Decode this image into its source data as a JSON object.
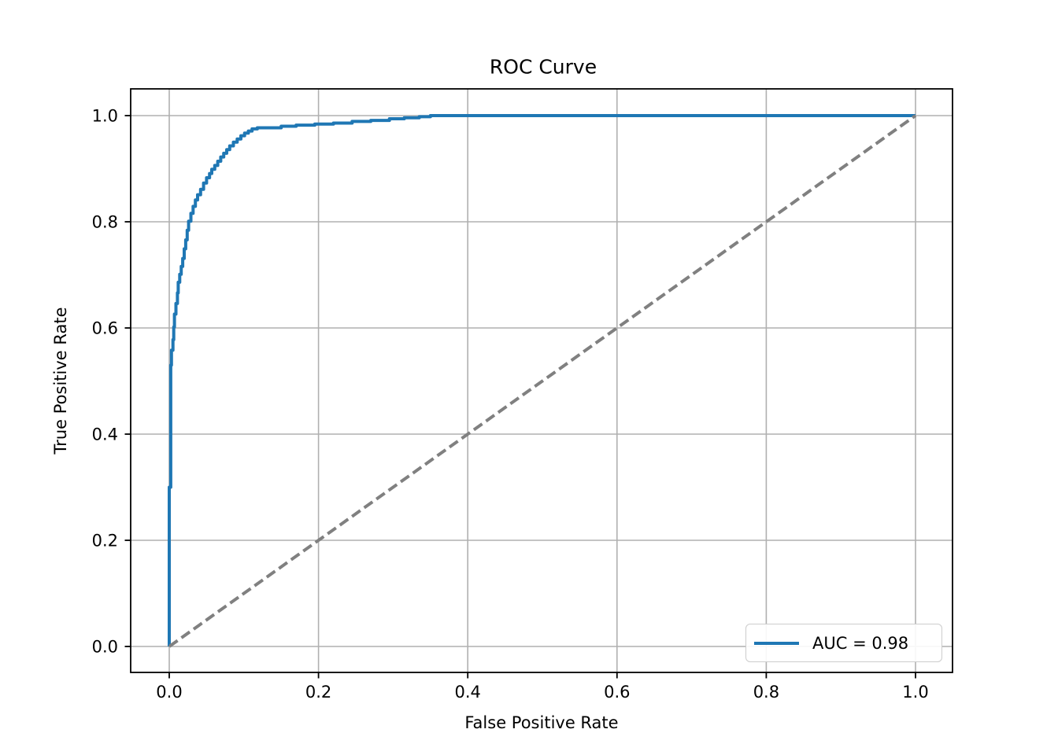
{
  "figure": {
    "background": "#ffffff"
  },
  "chart_data": {
    "type": "line",
    "title": "ROC Curve",
    "xlabel": "False Positive Rate",
    "ylabel": "True Positive Rate",
    "xlim": [
      0.0,
      1.0
    ],
    "ylim": [
      0.0,
      1.0
    ],
    "grid": true,
    "grid_color": "#b0b0b0",
    "x_ticks": [
      0.0,
      0.2,
      0.4,
      0.6,
      0.8,
      1.0
    ],
    "x_tick_labels": [
      "0.0",
      "0.2",
      "0.4",
      "0.6",
      "0.8",
      "1.0"
    ],
    "y_ticks": [
      0.0,
      0.2,
      0.4,
      0.6,
      0.8,
      1.0
    ],
    "y_tick_labels": [
      "0.0",
      "0.2",
      "0.4",
      "0.6",
      "0.8",
      "1.0"
    ],
    "legend": {
      "position": "lower right",
      "labels": [
        "AUC = 0.98"
      ]
    },
    "auc": 0.98,
    "series": [
      {
        "name": "AUC = 0.98",
        "color": "#1f77b4",
        "style": "solid",
        "in_legend": true,
        "points": [
          [
            0.0,
            0.0
          ],
          [
            0.0,
            0.3
          ],
          [
            0.002,
            0.3
          ],
          [
            0.002,
            0.53
          ],
          [
            0.003,
            0.53
          ],
          [
            0.003,
            0.558
          ],
          [
            0.005,
            0.558
          ],
          [
            0.005,
            0.578
          ],
          [
            0.006,
            0.578
          ],
          [
            0.006,
            0.602
          ],
          [
            0.007,
            0.602
          ],
          [
            0.007,
            0.626
          ],
          [
            0.009,
            0.626
          ],
          [
            0.009,
            0.646
          ],
          [
            0.011,
            0.646
          ],
          [
            0.011,
            0.666
          ],
          [
            0.012,
            0.666
          ],
          [
            0.012,
            0.686
          ],
          [
            0.014,
            0.686
          ],
          [
            0.014,
            0.701
          ],
          [
            0.016,
            0.701
          ],
          [
            0.016,
            0.716
          ],
          [
            0.018,
            0.716
          ],
          [
            0.018,
            0.731
          ],
          [
            0.02,
            0.731
          ],
          [
            0.02,
            0.749
          ],
          [
            0.022,
            0.749
          ],
          [
            0.022,
            0.766
          ],
          [
            0.024,
            0.766
          ],
          [
            0.024,
            0.784
          ],
          [
            0.026,
            0.784
          ],
          [
            0.026,
            0.801
          ],
          [
            0.029,
            0.801
          ],
          [
            0.029,
            0.816
          ],
          [
            0.032,
            0.816
          ],
          [
            0.032,
            0.829
          ],
          [
            0.035,
            0.829
          ],
          [
            0.035,
            0.841
          ],
          [
            0.038,
            0.841
          ],
          [
            0.038,
            0.851
          ],
          [
            0.042,
            0.851
          ],
          [
            0.042,
            0.861
          ],
          [
            0.046,
            0.861
          ],
          [
            0.046,
            0.873
          ],
          [
            0.05,
            0.873
          ],
          [
            0.05,
            0.883
          ],
          [
            0.054,
            0.883
          ],
          [
            0.054,
            0.891
          ],
          [
            0.057,
            0.891
          ],
          [
            0.057,
            0.899
          ],
          [
            0.061,
            0.899
          ],
          [
            0.061,
            0.906
          ],
          [
            0.065,
            0.906
          ],
          [
            0.065,
            0.914
          ],
          [
            0.069,
            0.914
          ],
          [
            0.069,
            0.922
          ],
          [
            0.073,
            0.922
          ],
          [
            0.073,
            0.929
          ],
          [
            0.077,
            0.929
          ],
          [
            0.077,
            0.936
          ],
          [
            0.081,
            0.936
          ],
          [
            0.081,
            0.943
          ],
          [
            0.086,
            0.943
          ],
          [
            0.086,
            0.95
          ],
          [
            0.091,
            0.95
          ],
          [
            0.091,
            0.956
          ],
          [
            0.096,
            0.956
          ],
          [
            0.096,
            0.962
          ],
          [
            0.101,
            0.962
          ],
          [
            0.101,
            0.967
          ],
          [
            0.106,
            0.967
          ],
          [
            0.106,
            0.971
          ],
          [
            0.111,
            0.971
          ],
          [
            0.111,
            0.975
          ],
          [
            0.118,
            0.975
          ],
          [
            0.118,
            0.977
          ],
          [
            0.15,
            0.977
          ],
          [
            0.15,
            0.98
          ],
          [
            0.17,
            0.98
          ],
          [
            0.17,
            0.982
          ],
          [
            0.195,
            0.982
          ],
          [
            0.195,
            0.984
          ],
          [
            0.22,
            0.984
          ],
          [
            0.22,
            0.986
          ],
          [
            0.245,
            0.986
          ],
          [
            0.245,
            0.989
          ],
          [
            0.27,
            0.989
          ],
          [
            0.27,
            0.991
          ],
          [
            0.295,
            0.991
          ],
          [
            0.295,
            0.994
          ],
          [
            0.315,
            0.994
          ],
          [
            0.315,
            0.996
          ],
          [
            0.335,
            0.996
          ],
          [
            0.335,
            0.998
          ],
          [
            0.35,
            0.998
          ],
          [
            0.35,
            1.0
          ],
          [
            1.0,
            1.0
          ]
        ]
      },
      {
        "name": "chance-diagonal",
        "color": "#808080",
        "style": "dashed",
        "in_legend": false,
        "points": [
          [
            0.0,
            0.0
          ],
          [
            1.0,
            1.0
          ]
        ]
      }
    ]
  },
  "colors": {
    "roc_line": "#1f77b4",
    "diagonal": "#808080",
    "grid": "#b0b0b0",
    "spine": "#000000",
    "legend_border": "#cccccc"
  }
}
